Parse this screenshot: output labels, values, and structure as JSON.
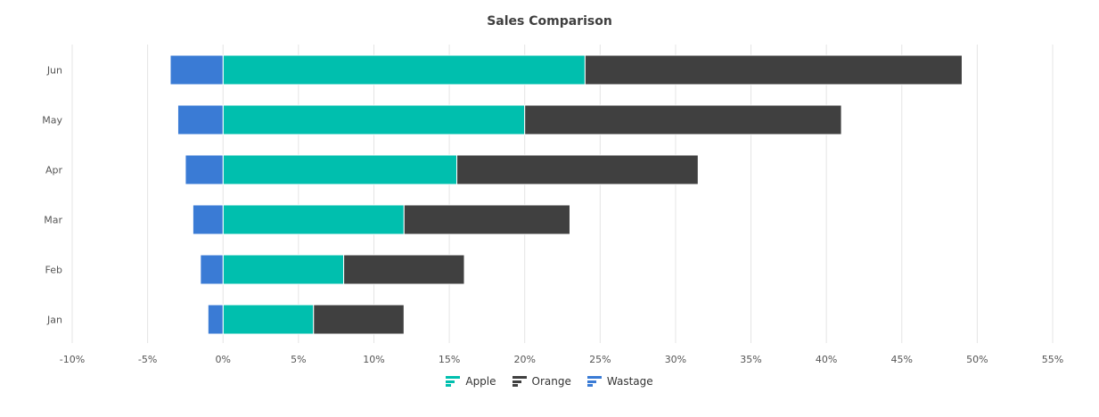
{
  "chart_data": {
    "type": "bar",
    "orientation": "horizontal",
    "stacked": true,
    "title": "Sales Comparison",
    "categories": [
      "Jan",
      "Feb",
      "Mar",
      "Apr",
      "May",
      "Jun"
    ],
    "series": [
      {
        "name": "Apple",
        "color": "#00bfae",
        "values": [
          6,
          8,
          12,
          15.5,
          20,
          24
        ]
      },
      {
        "name": "Orange",
        "color": "#404040",
        "values": [
          6,
          8,
          11,
          16,
          21,
          25
        ]
      },
      {
        "name": "Wastage",
        "color": "#3a7bd5",
        "values": [
          -1,
          -1.5,
          -2,
          -2.5,
          -3,
          -3.5
        ]
      }
    ],
    "xlim": [
      -10,
      55
    ],
    "xticks": [
      "-10%",
      "-5%",
      "0%",
      "5%",
      "10%",
      "15%",
      "20%",
      "25%",
      "30%",
      "35%",
      "40%",
      "45%",
      "50%",
      "55%"
    ],
    "grid": true,
    "legend_position": "bottom"
  }
}
